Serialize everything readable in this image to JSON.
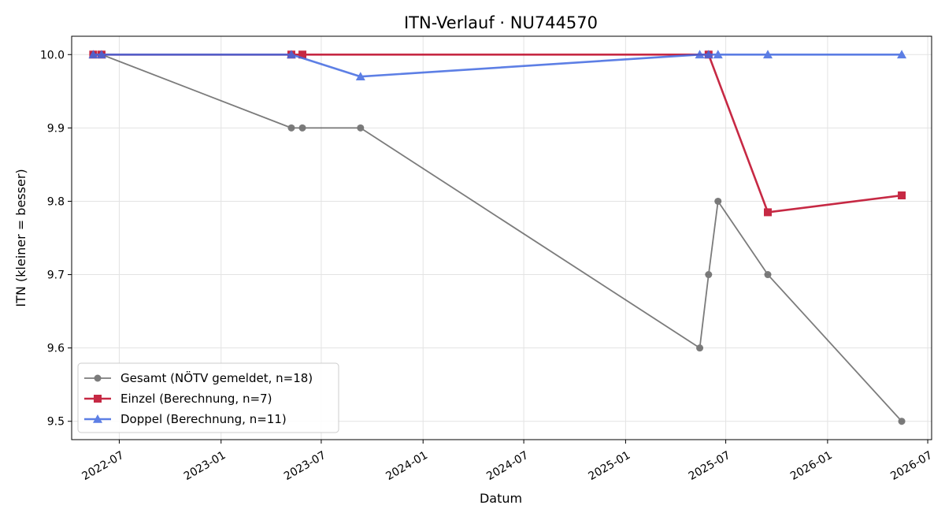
{
  "chart_data": {
    "type": "line",
    "title": "ITN-Verlauf · NU744570",
    "xlabel": "Datum",
    "ylabel": "ITN  (kleiner = besser)",
    "xlim": [
      "2022-04-06",
      "2026-07-08"
    ],
    "ylim": [
      9.475,
      10.025
    ],
    "grid": true,
    "legend_position": "lower-left",
    "x_ticks": [
      {
        "date": "2022-07-01",
        "label": "2022-07"
      },
      {
        "date": "2023-01-01",
        "label": "2023-01"
      },
      {
        "date": "2023-07-01",
        "label": "2023-07"
      },
      {
        "date": "2024-01-01",
        "label": "2024-01"
      },
      {
        "date": "2024-07-01",
        "label": "2024-07"
      },
      {
        "date": "2025-01-01",
        "label": "2025-01"
      },
      {
        "date": "2025-07-01",
        "label": "2025-07"
      },
      {
        "date": "2026-01-01",
        "label": "2026-01"
      },
      {
        "date": "2026-07-01",
        "label": "2026-07"
      }
    ],
    "y_ticks": [
      {
        "value": 9.5,
        "label": "9.5"
      },
      {
        "value": 9.6,
        "label": "9.6"
      },
      {
        "value": 9.7,
        "label": "9.7"
      },
      {
        "value": 9.8,
        "label": "9.8"
      },
      {
        "value": 9.9,
        "label": "9.9"
      },
      {
        "value": 10.0,
        "label": "10.0"
      }
    ],
    "series": [
      {
        "name": "Gesamt (NÖTV gemeldet, n=18)",
        "color": "#444444",
        "marker": "circle",
        "points": [
          {
            "x": "2022-05-15",
            "y": 10.0
          },
          {
            "x": "2022-05-30",
            "y": 10.0
          },
          {
            "x": "2023-05-08",
            "y": 9.9
          },
          {
            "x": "2023-05-28",
            "y": 9.9
          },
          {
            "x": "2023-09-10",
            "y": 9.9
          },
          {
            "x": "2025-05-15",
            "y": 9.6
          },
          {
            "x": "2025-05-31",
            "y": 9.7
          },
          {
            "x": "2025-06-17",
            "y": 9.8
          },
          {
            "x": "2025-09-15",
            "y": 9.7
          },
          {
            "x": "2026-05-15",
            "y": 9.5
          }
        ]
      },
      {
        "name": "Einzel (Berechnung, n=7)",
        "color": "#c41e3a",
        "marker": "square",
        "points": [
          {
            "x": "2022-05-15",
            "y": 10.0
          },
          {
            "x": "2022-05-30",
            "y": 10.0
          },
          {
            "x": "2023-05-08",
            "y": 10.0
          },
          {
            "x": "2023-05-28",
            "y": 10.0
          },
          {
            "x": "2025-05-31",
            "y": 10.0
          },
          {
            "x": "2025-09-15",
            "y": 9.785
          },
          {
            "x": "2026-05-15",
            "y": 9.808
          }
        ]
      },
      {
        "name": "Doppel (Berechnung, n=11)",
        "color": "#4169e1",
        "marker": "triangle",
        "points": [
          {
            "x": "2022-05-15",
            "y": 10.0
          },
          {
            "x": "2022-05-30",
            "y": 10.0
          },
          {
            "x": "2023-05-08",
            "y": 10.0
          },
          {
            "x": "2023-09-10",
            "y": 9.97
          },
          {
            "x": "2025-05-15",
            "y": 10.0
          },
          {
            "x": "2025-05-31",
            "y": 10.0
          },
          {
            "x": "2025-06-17",
            "y": 10.0
          },
          {
            "x": "2025-09-15",
            "y": 10.0
          },
          {
            "x": "2026-05-15",
            "y": 10.0
          }
        ]
      }
    ]
  }
}
